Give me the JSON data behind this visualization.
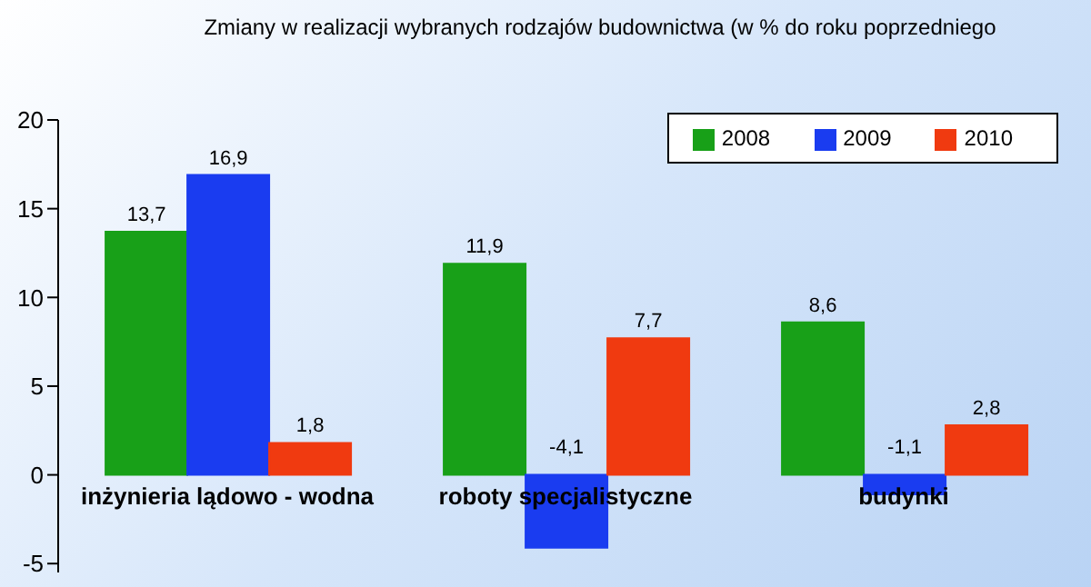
{
  "chart_data": {
    "type": "bar",
    "title": "Zmiany w realizacji wybranych rodzajów budownictwa (w % do roku poprzedniego",
    "categories": [
      "inżynieria lądowo - wodna",
      "roboty specjalistyczne",
      "budynki"
    ],
    "series": [
      {
        "name": "2008",
        "color": "#18a018",
        "values": [
          13.7,
          11.9,
          8.6
        ],
        "value_labels": [
          "13,7",
          "11,9",
          "8,6"
        ]
      },
      {
        "name": "2009",
        "color": "#1a3cf0",
        "values": [
          16.9,
          -4.1,
          -1.1
        ],
        "value_labels": [
          "16,9",
          "-4,1",
          "-1,1"
        ]
      },
      {
        "name": "2010",
        "color": "#f03a10",
        "values": [
          1.8,
          7.7,
          2.8
        ],
        "value_labels": [
          "1,8",
          "7,7",
          "2,8"
        ]
      }
    ],
    "ylim": [
      -5.5,
      20
    ],
    "yticks": [
      -5,
      0,
      5,
      10,
      15,
      20
    ],
    "grid": false,
    "legend": "top right"
  }
}
